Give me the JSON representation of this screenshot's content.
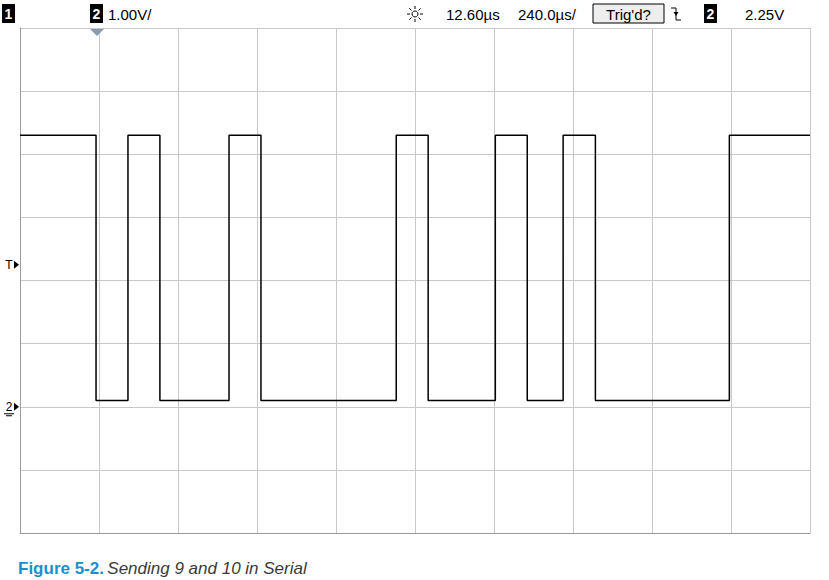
{
  "chart_data": {
    "type": "line",
    "title": "Figure 5-2. Sending 9 and 10 in Serial",
    "header": [
      "1",
      "2",
      "1.00V/",
      "12.60µs",
      "240.0µs/",
      "Trig'd?",
      "2",
      "2.25V"
    ],
    "annotations": [
      {
        "text": "T",
        "y": 2.25
      },
      {
        "text": "2",
        "y": 0
      }
    ],
    "x": [
      0,
      231,
      328,
      425,
      635,
      732,
      1143,
      1240,
      1444,
      1541,
      1650,
      1748,
      2155,
      2400
    ],
    "values": [
      4.3,
      0.1,
      4.3,
      0.1,
      4.3,
      0.1,
      4.3,
      0.1,
      4.3,
      0.1,
      4.3,
      0.1,
      4.3,
      4.3
    ],
    "color": "#000000",
    "line_style": "step",
    "marker": "none",
    "xlim": [
      0,
      2400
    ],
    "xticks": [
      0,
      240,
      480,
      720,
      960,
      1200,
      1440,
      1680,
      1920,
      2160,
      2400
    ],
    "ylim": [
      -2,
      6
    ],
    "yticks": [
      -2,
      -1,
      0,
      1,
      2,
      3,
      4,
      5,
      6
    ],
    "grid": true,
    "tick_labels": false
  }
}
